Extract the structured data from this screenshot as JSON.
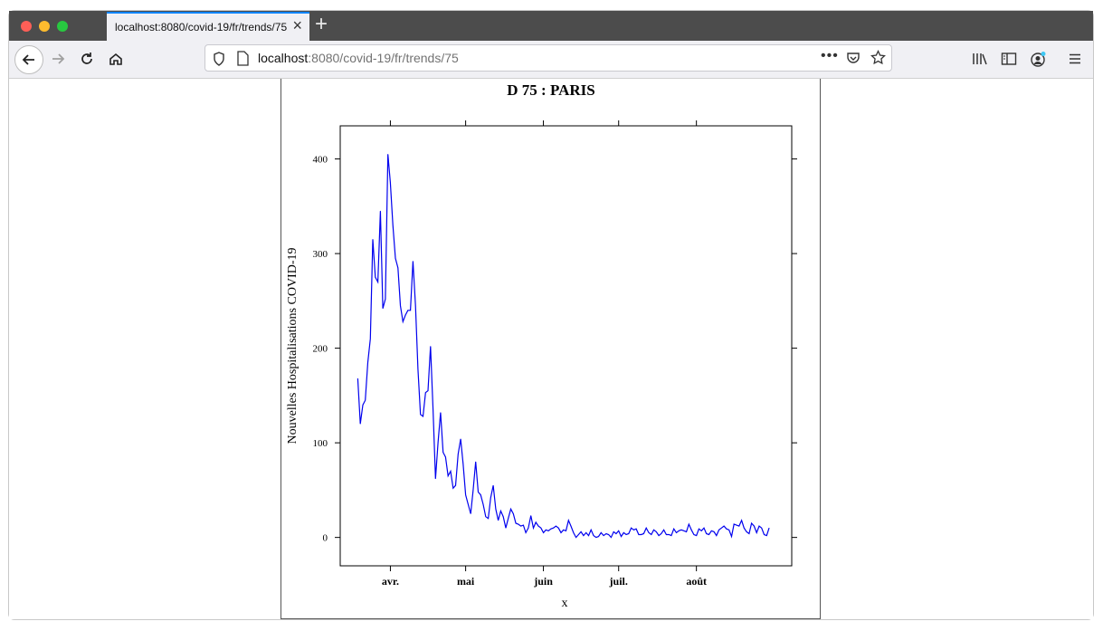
{
  "browser": {
    "tab_title": "localhost:8080/covid-19/fr/trends/75",
    "url_host": "localhost",
    "url_rest": ":8080/covid-19/fr/trends/75",
    "new_tab_label": "+"
  },
  "chart_data": {
    "type": "line",
    "title": "D 75 : PARIS",
    "xlabel": "x",
    "ylabel": "Nouvelles Hospitalisations COVID-19",
    "ylim": [
      -30,
      435
    ],
    "yticks": [
      0,
      100,
      200,
      300,
      400
    ],
    "xticks": [
      {
        "label": "avr.",
        "day": 0
      },
      {
        "label": "mai",
        "day": 30
      },
      {
        "label": "juin",
        "day": 61
      },
      {
        "label": "juil.",
        "day": 91
      },
      {
        "label": "août",
        "day": 122
      }
    ],
    "x_start": "2020-03-19",
    "x_end": "2020-08-27",
    "line_color": "#0000ee",
    "values": [
      168,
      120,
      140,
      145,
      185,
      210,
      315,
      275,
      270,
      345,
      242,
      252,
      405,
      375,
      330,
      295,
      285,
      245,
      228,
      235,
      240,
      240,
      292,
      245,
      178,
      130,
      128,
      153,
      155,
      202,
      135,
      62,
      100,
      132,
      90,
      85,
      65,
      70,
      52,
      55,
      88,
      104,
      78,
      45,
      35,
      25,
      50,
      80,
      48,
      45,
      35,
      22,
      20,
      42,
      55,
      30,
      18,
      28,
      22,
      10,
      20,
      30,
      25,
      15,
      14,
      12,
      13,
      5,
      10,
      23,
      10,
      16,
      12,
      10,
      5,
      8,
      7,
      9,
      10,
      12,
      10,
      5,
      8,
      7,
      18,
      12,
      5,
      0,
      3,
      6,
      2,
      5,
      2,
      8,
      2,
      0,
      1,
      5,
      2,
      4,
      3,
      0,
      6,
      4,
      7,
      1,
      5,
      3,
      4,
      10,
      8,
      9,
      3,
      3,
      4,
      10,
      5,
      3,
      8,
      6,
      2,
      4,
      8,
      3,
      3,
      2,
      9,
      5,
      7,
      8,
      7,
      6,
      14,
      8,
      3,
      2,
      9,
      7,
      10,
      4,
      3,
      7,
      6,
      2,
      8,
      10,
      12,
      9,
      8,
      1,
      14,
      13,
      12,
      18,
      10,
      6,
      4,
      15,
      12,
      5,
      12,
      10,
      3,
      2,
      10
    ]
  }
}
